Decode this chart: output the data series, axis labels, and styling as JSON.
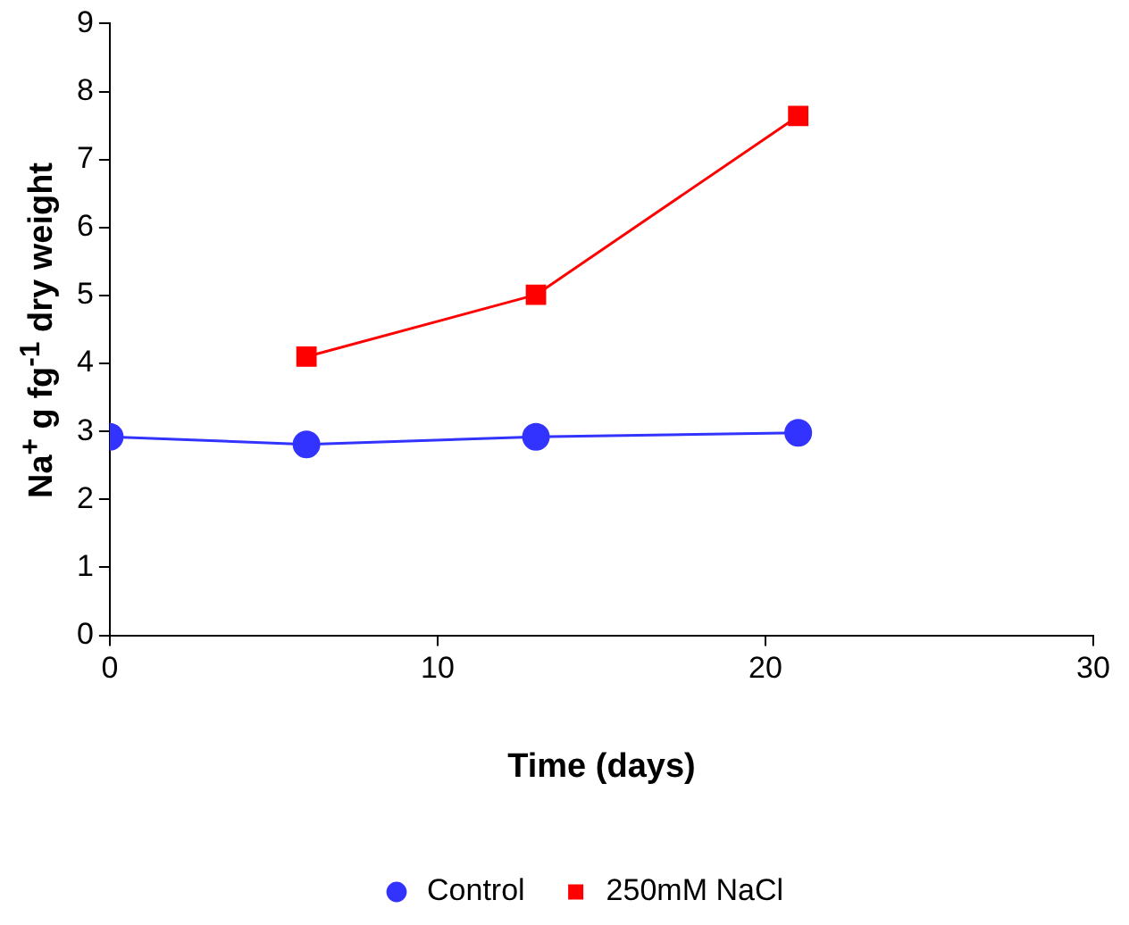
{
  "chart_data": {
    "type": "line",
    "xlabel": "Time (days)",
    "ylabel": "Na$^{+}$ g fg$^{-1}$ dry weight",
    "xlim": [
      0,
      30
    ],
    "xticks": [
      0,
      10,
      20,
      30
    ],
    "ylim": [
      0,
      9
    ],
    "yticks": [
      0,
      1,
      2,
      3,
      4,
      5,
      6,
      7,
      8,
      9
    ],
    "grid": false,
    "legend": "bottom",
    "line_style": "solid",
    "series": [
      {
        "name": "Control",
        "color": "#3333ff",
        "marker": "circle",
        "x": [
          0,
          6,
          13,
          21
        ],
        "values": [
          2.92,
          2.81,
          2.92,
          2.98
        ]
      },
      {
        "name": "250mM NaCl",
        "color": "#ff0000",
        "marker": "square",
        "x": [
          6,
          13,
          21
        ],
        "values": [
          4.1,
          5.01,
          7.64
        ]
      }
    ]
  }
}
